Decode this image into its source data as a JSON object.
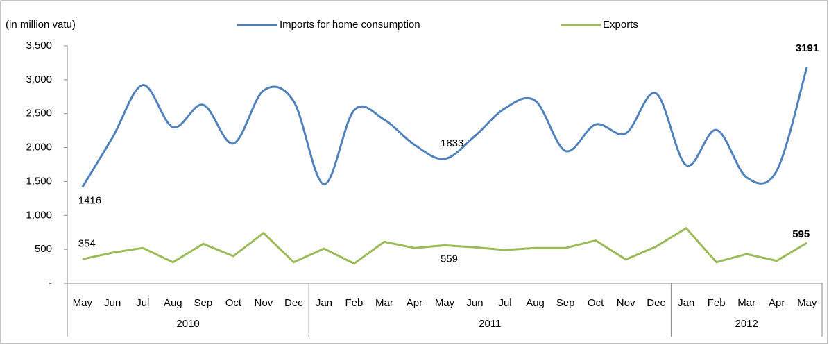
{
  "chart_data": {
    "type": "line",
    "y_axis_label": "(in million vatu)",
    "x_groups": [
      {
        "label": "2010",
        "categories": [
          "May",
          "Jun",
          "Jul",
          "Aug",
          "Sep",
          "Oct",
          "Nov",
          "Dec"
        ]
      },
      {
        "label": "2011",
        "categories": [
          "Jan",
          "Feb",
          "Mar",
          "Apr",
          "May",
          "Jun",
          "Jul",
          "Aug",
          "Sep",
          "Oct",
          "Nov",
          "Dec"
        ]
      },
      {
        "label": "2012",
        "categories": [
          "Jan",
          "Feb",
          "Mar",
          "Apr",
          "May"
        ]
      }
    ],
    "series": [
      {
        "name": "Imports for home consumption",
        "color": "#4f81bd",
        "smooth": true,
        "values": [
          1416,
          2150,
          2920,
          2300,
          2630,
          2060,
          2840,
          2680,
          1460,
          2550,
          2410,
          2040,
          1833,
          2170,
          2580,
          2690,
          1950,
          2340,
          2210,
          2800,
          1740,
          2260,
          1560,
          1660,
          3191
        ],
        "labels": [
          {
            "index": 0,
            "position": "below"
          },
          {
            "index": 12,
            "position": "above"
          },
          {
            "index": 24,
            "position": "above",
            "bold": true
          }
        ]
      },
      {
        "name": "Exports",
        "color": "#9bbb59",
        "smooth": false,
        "values": [
          354,
          450,
          520,
          310,
          580,
          400,
          740,
          310,
          510,
          290,
          610,
          520,
          559,
          530,
          490,
          520,
          520,
          630,
          350,
          540,
          810,
          310,
          430,
          330,
          595
        ],
        "labels": [
          {
            "index": 0,
            "position": "above"
          },
          {
            "index": 12,
            "position": "below"
          },
          {
            "index": 24,
            "position": "right",
            "bold": true
          }
        ]
      }
    ],
    "ylim": [
      0,
      3500
    ],
    "yticks": [
      {
        "value": 0,
        "label": "-"
      },
      500,
      {
        "value": 1000,
        "label": "1,000"
      },
      {
        "value": 1500,
        "label": "1,500"
      },
      {
        "value": 2000,
        "label": "2,000"
      },
      {
        "value": 2500,
        "label": "2,500"
      },
      {
        "value": 3000,
        "label": "3,000"
      },
      {
        "value": 3500,
        "label": "3,500"
      }
    ],
    "grid": false,
    "legend": "top"
  }
}
